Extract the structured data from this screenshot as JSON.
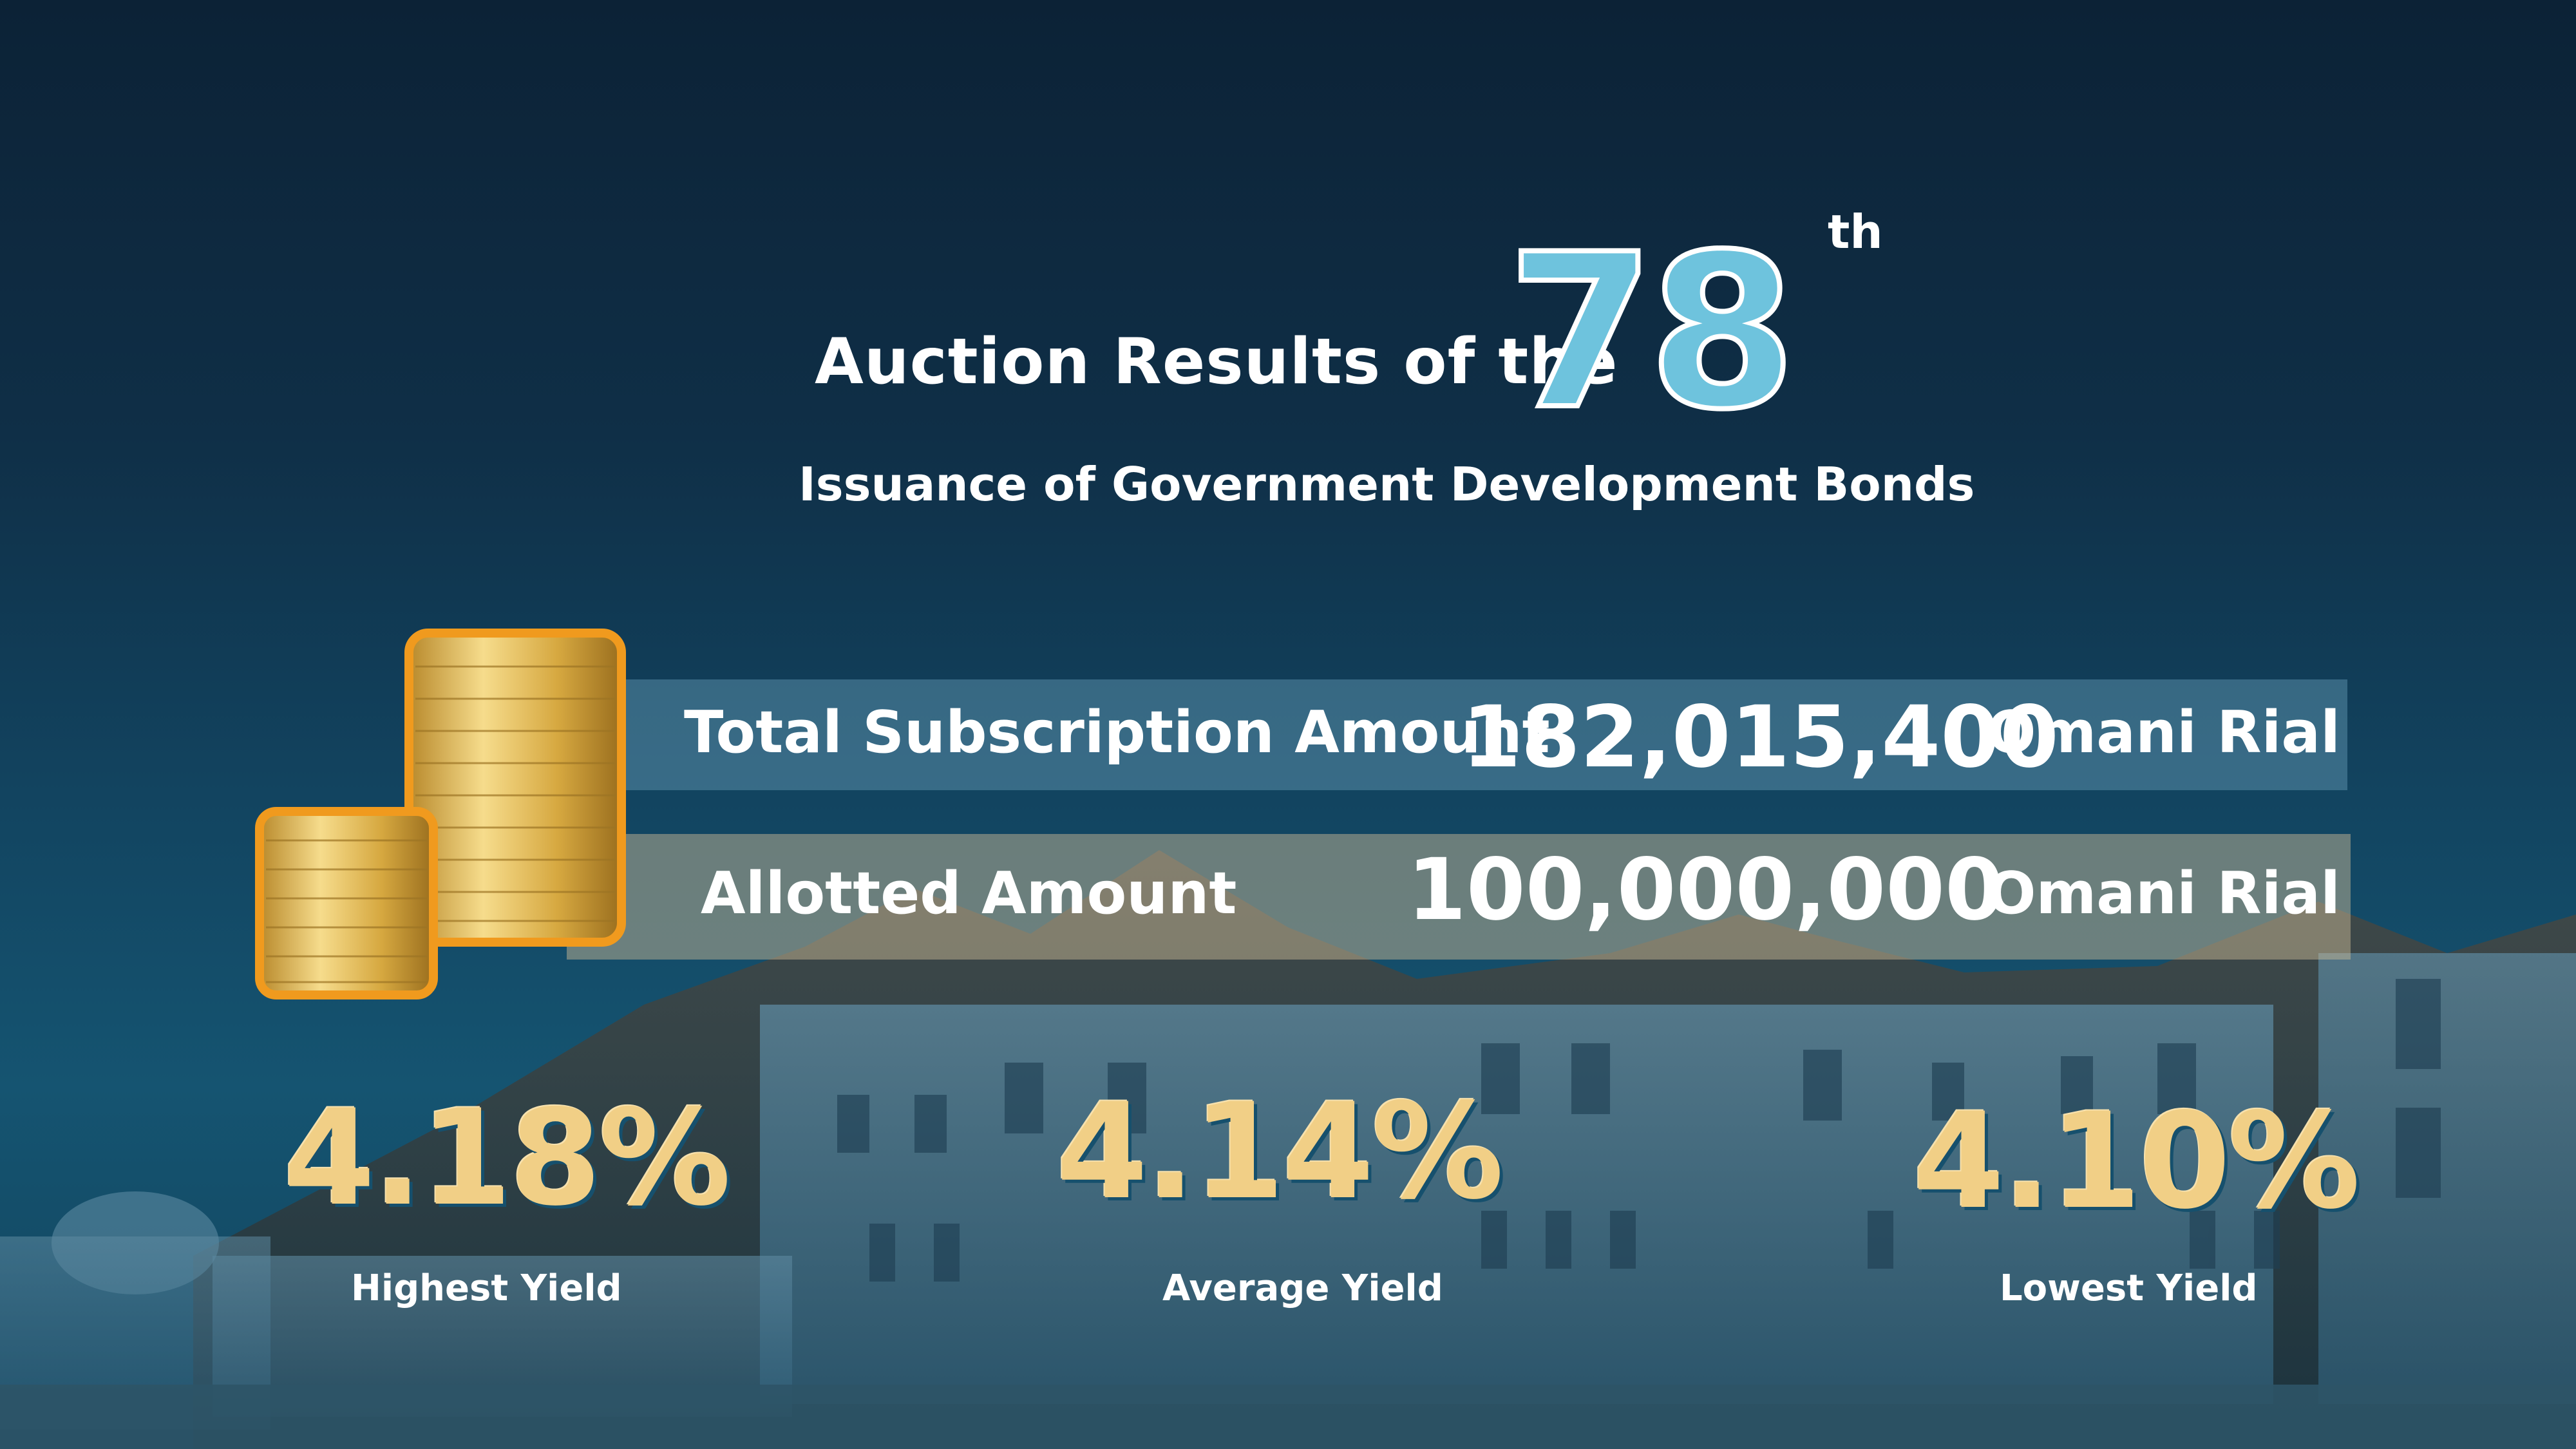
{
  "header": {
    "title_prefix": "Auction Results of the",
    "number": "78",
    "suffix": "th",
    "subtitle": "Issuance of Government Development Bonds"
  },
  "amounts": [
    {
      "label": "Total Subscription Amount",
      "value": "182,015,400",
      "unit": "Omani Rial"
    },
    {
      "label": "Allotted Amount",
      "value": "100,000,000",
      "unit": "Omani Rial"
    }
  ],
  "yields": [
    {
      "value": "4.18%",
      "label": "Highest Yield"
    },
    {
      "value": "4.14%",
      "label": "Average Yield"
    },
    {
      "value": "4.10%",
      "label": "Lowest Yield"
    }
  ],
  "colors": {
    "background": "#0f2f47",
    "number_fill": "#6ec3dd",
    "yield_gold": "#f1cf86",
    "coin_gold": "#e0b955",
    "coin_outline": "#f09a1e"
  }
}
